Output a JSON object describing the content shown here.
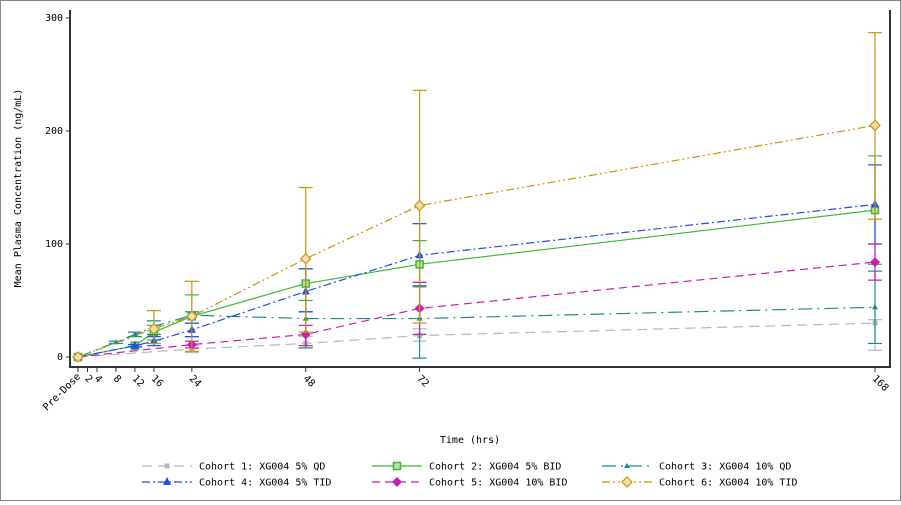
{
  "chart_data": {
    "type": "line",
    "title": "",
    "xlabel": "Time (hrs)",
    "ylabel": "Mean Plasma Concentration (ng/mL)",
    "xlim": [
      0,
      168
    ],
    "ylim": [
      0,
      300
    ],
    "yticks": [
      0,
      100,
      200,
      300
    ],
    "xticks": [
      {
        "value": 0,
        "label": "Pre-Dose"
      },
      {
        "value": 2,
        "label": "2"
      },
      {
        "value": 4,
        "label": "4"
      },
      {
        "value": 8,
        "label": "8"
      },
      {
        "value": 12,
        "label": "12"
      },
      {
        "value": 16,
        "label": "16"
      },
      {
        "value": 24,
        "label": "24"
      },
      {
        "value": 48,
        "label": "48"
      },
      {
        "value": 72,
        "label": "72"
      },
      {
        "value": 168,
        "label": "168"
      }
    ],
    "grid": false,
    "legend_placement": "bottom",
    "series": [
      {
        "name": "Cohort 1: XG004 5% QD",
        "color": "#b8b8b8",
        "dash": "10,6",
        "marker": "square",
        "x": [
          0,
          24,
          48,
          72,
          168
        ],
        "y": [
          0,
          7,
          12,
          19,
          30
        ],
        "lower": [
          0,
          4,
          8,
          14,
          6
        ],
        "upper": [
          0,
          10,
          18,
          25,
          33
        ]
      },
      {
        "name": "Cohort 2: XG004 5% BID",
        "color": "#3cb832",
        "dash": "",
        "marker": "open-square",
        "x": [
          0,
          12,
          16,
          24,
          48,
          72,
          168
        ],
        "y": [
          0,
          10,
          22,
          36,
          65,
          82,
          130
        ],
        "lower": [
          0,
          9,
          15,
          18,
          50,
          62,
          82
        ],
        "upper": [
          0,
          11,
          28,
          55,
          78,
          103,
          178
        ]
      },
      {
        "name": "Cohort 3: XG004 10% QD",
        "color": "#1a8a8a",
        "dash": "14,5,2,5",
        "marker": "triangle",
        "x": [
          0,
          8,
          12,
          16,
          24,
          48,
          72,
          168
        ],
        "y": [
          0,
          13,
          20,
          27,
          37,
          34,
          34,
          44
        ],
        "lower": [
          0,
          12,
          18,
          20,
          30,
          8,
          -1,
          12
        ],
        "upper": [
          0,
          14,
          22,
          32,
          40,
          40,
          66,
          76
        ]
      },
      {
        "name": "Cohort 4: XG004 5% TID",
        "color": "#1e50e6",
        "dash": "8,3,2,3",
        "marker": "star",
        "x": [
          0,
          12,
          16,
          24,
          48,
          72,
          168
        ],
        "y": [
          0,
          10,
          14,
          24,
          58,
          90,
          135
        ],
        "lower": [
          0,
          9,
          10,
          18,
          40,
          63,
          100
        ],
        "upper": [
          0,
          11,
          18,
          30,
          78,
          118,
          170
        ]
      },
      {
        "name": "Cohort 5: XG004 10% BID",
        "color": "#c81eb4",
        "dash": "8,5",
        "marker": "diamond",
        "x": [
          0,
          24,
          48,
          72,
          168
        ],
        "y": [
          0,
          11,
          20,
          43,
          84
        ],
        "lower": [
          0,
          8,
          10,
          20,
          68
        ],
        "upper": [
          0,
          14,
          28,
          66,
          100
        ]
      },
      {
        "name": "Cohort 6: XG004 10% TID",
        "color": "#c8960a",
        "dash": "8,3,2,3,2,3",
        "marker": "open-diamond",
        "x": [
          0,
          16,
          24,
          48,
          72,
          168
        ],
        "y": [
          0,
          25,
          36,
          87,
          134,
          205
        ],
        "lower": [
          0,
          12,
          5,
          22,
          30,
          122
        ],
        "upper": [
          0,
          41,
          67,
          150,
          236,
          287
        ]
      }
    ]
  }
}
